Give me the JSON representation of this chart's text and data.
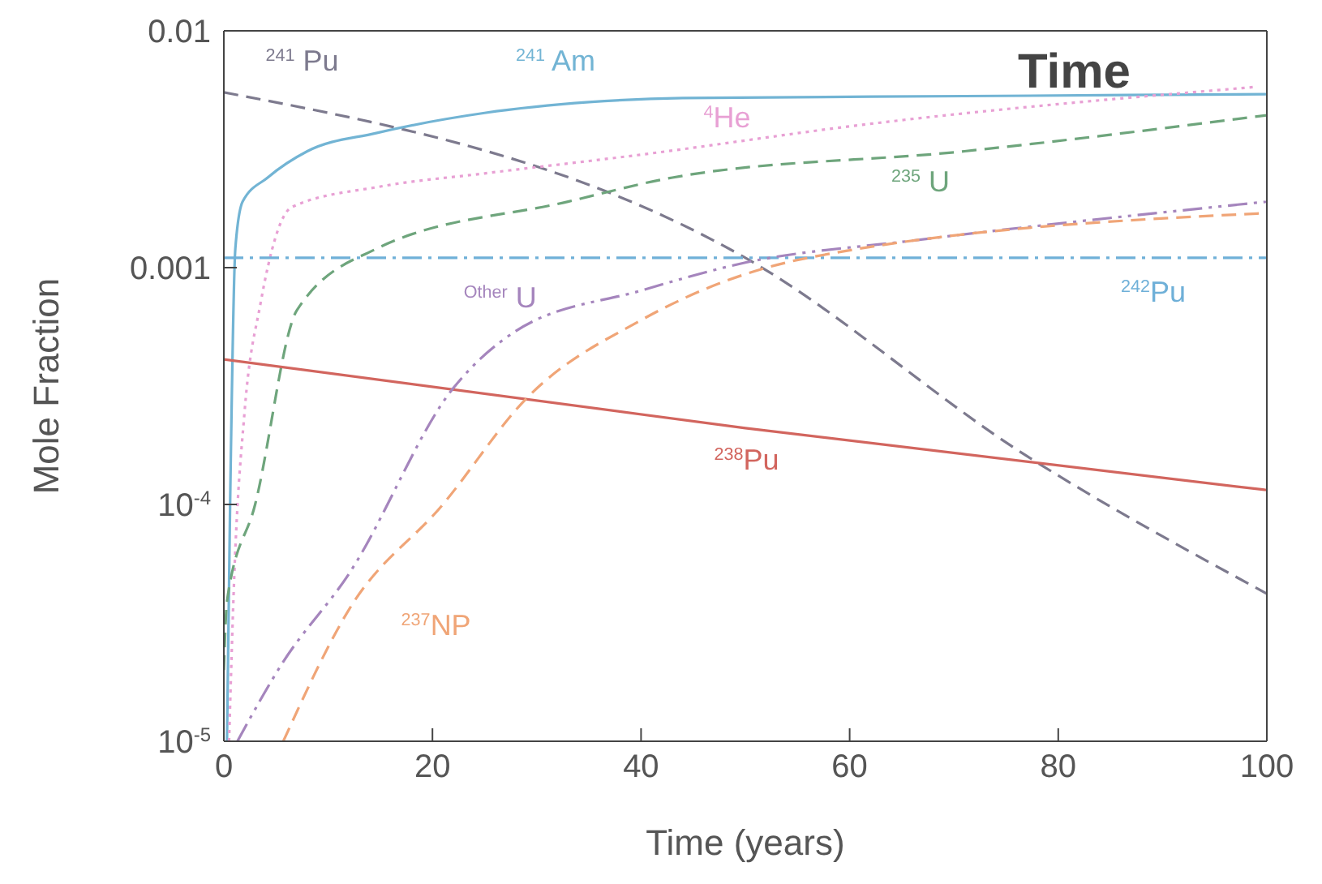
{
  "chart_data": {
    "type": "line",
    "title": "Time",
    "xlabel": "Time (years)",
    "ylabel": "Mole Fraction",
    "log": "y",
    "marker": "none",
    "xlim": [
      0,
      100
    ],
    "xticks": [
      0,
      20,
      40,
      60,
      80,
      100
    ],
    "ylim": [
      1e-05,
      0.01
    ],
    "yticks": [
      {
        "value": 0.01,
        "label": "0.01"
      },
      {
        "value": 0.001,
        "label": "0.001"
      },
      {
        "value": 0.0001,
        "label": "10$^{-4}$"
      },
      {
        "value": 1e-05,
        "label": "10$^{-5}$"
      }
    ],
    "series": [
      {
        "name": "$^{241}$ Pu",
        "color": "#7d7a8e",
        "line_style": "dashed",
        "x": [
          0,
          50,
          77,
          100
        ],
        "values": [
          0.0055,
          0.0011,
          0.00016,
          4.2e-05
        ]
      },
      {
        "name": "$^{241}$ Am",
        "color": "#72b4d4",
        "line_style": "solid",
        "x": [
          0.3,
          0.6,
          1.1,
          1.8,
          4.2,
          8,
          14.6,
          25,
          35,
          44,
          71,
          100
        ],
        "values": [
          1e-05,
          0.0001,
          0.0012,
          0.0019,
          0.0024,
          0.0031,
          0.0037,
          0.0045,
          0.005,
          0.0052,
          0.0053,
          0.0054
        ]
      },
      {
        "name": "$^{4}$He",
        "color": "#e8a0d4",
        "line_style": "dotted",
        "x": [
          0.5,
          1,
          2,
          3.5,
          6.5,
          15,
          25,
          40,
          61,
          99
        ],
        "values": [
          1e-05,
          5e-05,
          0.00025,
          0.0007,
          0.0018,
          0.0022,
          0.0025,
          0.003,
          0.004,
          0.0058
        ]
      },
      {
        "name": "$^{235}$ U",
        "color": "#6ea57c",
        "line_style": "dashed",
        "x": [
          0,
          0.3,
          3,
          7,
          14.6,
          33,
          43,
          71,
          100
        ],
        "values": [
          2e-05,
          3.9e-05,
          0.0001,
          0.00066,
          0.0012,
          0.0019,
          0.0024,
          0.0031,
          0.0044
        ]
      },
      {
        "name": "$^{242}$Pu",
        "color": "#6fb0d8",
        "line_style": "dashdot",
        "x": [
          0,
          100
        ],
        "values": [
          0.0011,
          0.0011
        ]
      },
      {
        "name": "$^{238}$Pu",
        "color": "#d2655e",
        "line_style": "solid",
        "x": [
          0,
          50,
          100
        ],
        "values": [
          0.00041,
          0.00021,
          0.000115
        ]
      },
      {
        "name": "$^{Other}$ U",
        "color": "#a585bd",
        "line_style": "dashdotdot",
        "x": [
          1.3,
          5.5,
          12,
          22,
          28,
          40,
          50,
          66,
          100
        ],
        "values": [
          1e-05,
          2.1e-05,
          5.1e-05,
          0.00031,
          0.00054,
          0.0008,
          0.00105,
          0.0013,
          0.0019
        ]
      },
      {
        "name": "$^{237}$NP",
        "color": "#f0a577",
        "line_style": "dashed",
        "x": [
          5.7,
          12,
          21,
          29,
          40,
          56,
          100
        ],
        "values": [
          1e-05,
          3.6e-05,
          0.0001,
          0.00028,
          0.0006,
          0.0011,
          0.0017
        ]
      }
    ]
  }
}
